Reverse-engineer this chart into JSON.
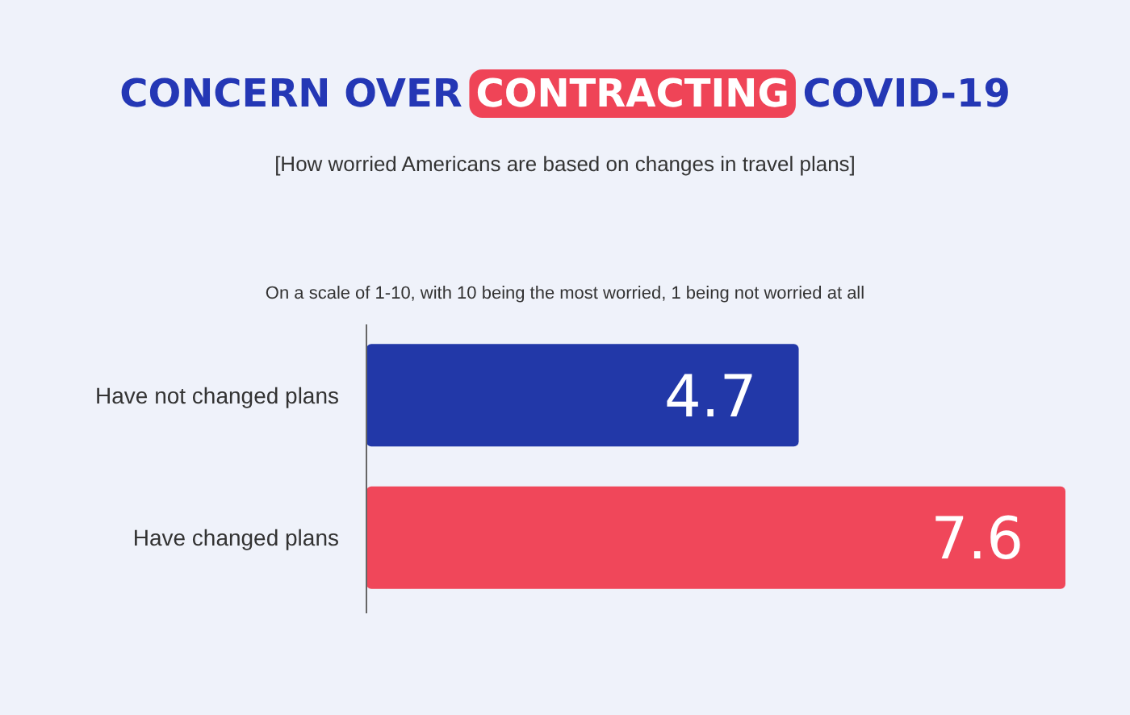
{
  "chart_data": {
    "type": "bar",
    "orientation": "horizontal",
    "title": "CONCERN OVER CONTRACTING COVID-19",
    "subtitle": "[How worried Americans are based on changes in travel plans]",
    "annotations": [
      "On a scale of 1-10, with 10 being the most worried, 1 being not worried at all"
    ],
    "categories": [
      "Have not changed plans",
      "Have changed plans"
    ],
    "values": [
      4.7,
      7.6
    ],
    "colors": [
      "#2238a8",
      "#f0475a"
    ],
    "data_labels": true
  }
}
